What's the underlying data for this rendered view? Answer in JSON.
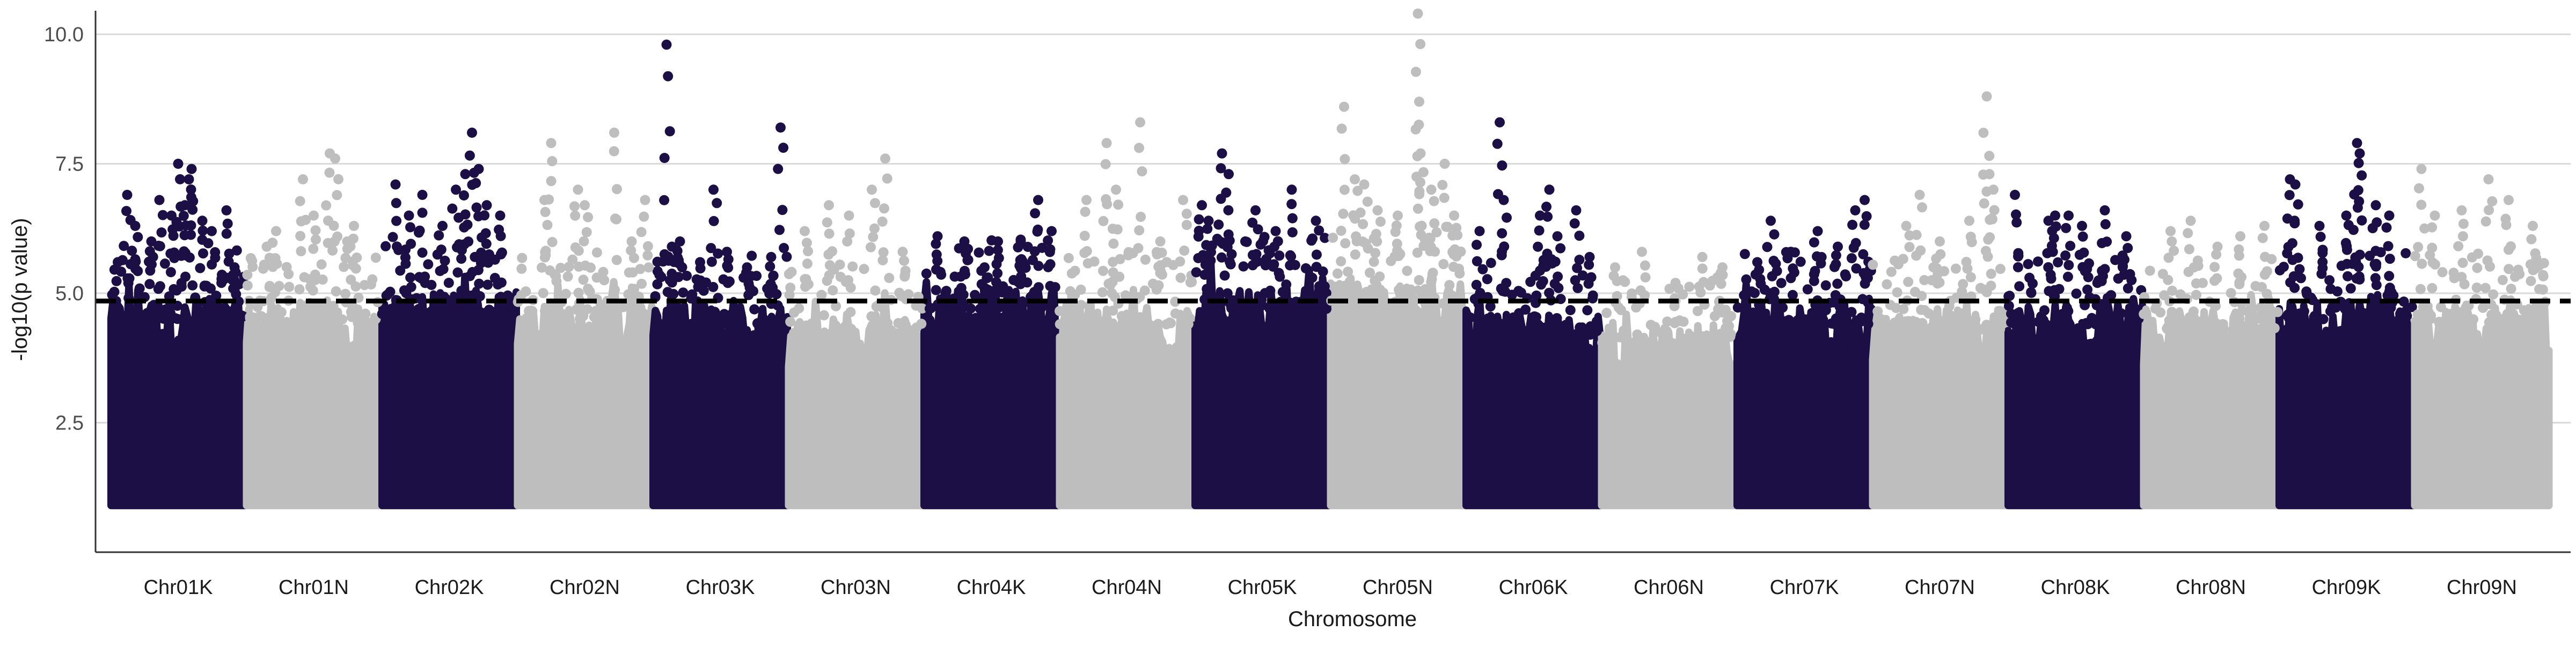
{
  "chart_data": {
    "type": "scatter",
    "subtype": "manhattan",
    "title": "",
    "xlabel": "Chromosome",
    "ylabel": "-log10(p value)",
    "ylim": [
      0,
      11
    ],
    "yticks": [
      2.5,
      5.0,
      7.5,
      10.0
    ],
    "ytick_labels": [
      "2.5",
      "5.0",
      "7.5",
      "10.0"
    ],
    "grid": "horizontal major lines",
    "legend": "none",
    "threshold": 4.85,
    "threshold_style": "dashed black",
    "colors": {
      "odd": "#1c0f45",
      "even": "#bebebe",
      "threshold": "#000000",
      "grid": "#d9d9d9",
      "axis": "#333333"
    },
    "categories": [
      "Chr01K",
      "Chr01N",
      "Chr02K",
      "Chr02N",
      "Chr03K",
      "Chr03N",
      "Chr04K",
      "Chr04N",
      "Chr05K",
      "Chr05N",
      "Chr06K",
      "Chr06N",
      "Chr07K",
      "Chr07N",
      "Chr08K",
      "Chr08N",
      "Chr09K",
      "Chr09N"
    ],
    "dense_ceiling": [
      4.7,
      4.6,
      4.8,
      4.7,
      4.6,
      4.4,
      4.9,
      4.6,
      4.9,
      5.0,
      4.4,
      4.2,
      4.6,
      4.5,
      4.6,
      4.5,
      4.7,
      4.6
    ],
    "peaks": [
      {
        "chr": "Chr01K",
        "pos": 0.05,
        "p": 5.6
      },
      {
        "chr": "Chr01K",
        "pos": 0.12,
        "p": 6.9
      },
      {
        "chr": "Chr01K",
        "pos": 0.18,
        "p": 6.3
      },
      {
        "chr": "Chr01K",
        "pos": 0.3,
        "p": 6.0
      },
      {
        "chr": "Chr01K",
        "pos": 0.36,
        "p": 6.8
      },
      {
        "chr": "Chr01K",
        "pos": 0.45,
        "p": 6.5
      },
      {
        "chr": "Chr01K",
        "pos": 0.5,
        "p": 7.5
      },
      {
        "chr": "Chr01K",
        "pos": 0.55,
        "p": 6.7
      },
      {
        "chr": "Chr01K",
        "pos": 0.58,
        "p": 7.2
      },
      {
        "chr": "Chr01K",
        "pos": 0.6,
        "p": 7.4
      },
      {
        "chr": "Chr01K",
        "pos": 0.68,
        "p": 6.4
      },
      {
        "chr": "Chr01K",
        "pos": 0.75,
        "p": 6.2
      },
      {
        "chr": "Chr01K",
        "pos": 0.86,
        "p": 6.6
      },
      {
        "chr": "Chr01K",
        "pos": 0.92,
        "p": 5.5
      },
      {
        "chr": "Chr01N",
        "pos": 0.15,
        "p": 5.9
      },
      {
        "chr": "Chr01N",
        "pos": 0.22,
        "p": 6.2
      },
      {
        "chr": "Chr01N",
        "pos": 0.42,
        "p": 7.2
      },
      {
        "chr": "Chr01N",
        "pos": 0.5,
        "p": 6.5
      },
      {
        "chr": "Chr01N",
        "pos": 0.62,
        "p": 7.7
      },
      {
        "chr": "Chr01N",
        "pos": 0.66,
        "p": 7.6
      },
      {
        "chr": "Chr01N",
        "pos": 0.75,
        "p": 6.0
      },
      {
        "chr": "Chr01N",
        "pos": 0.8,
        "p": 6.3
      },
      {
        "chr": "Chr02K",
        "pos": 0.1,
        "p": 7.1
      },
      {
        "chr": "Chr02K",
        "pos": 0.2,
        "p": 6.5
      },
      {
        "chr": "Chr02K",
        "pos": 0.3,
        "p": 6.9
      },
      {
        "chr": "Chr02K",
        "pos": 0.45,
        "p": 6.3
      },
      {
        "chr": "Chr02K",
        "pos": 0.55,
        "p": 7.0
      },
      {
        "chr": "Chr02K",
        "pos": 0.62,
        "p": 7.3
      },
      {
        "chr": "Chr02K",
        "pos": 0.67,
        "p": 8.1
      },
      {
        "chr": "Chr02K",
        "pos": 0.72,
        "p": 7.4
      },
      {
        "chr": "Chr02K",
        "pos": 0.78,
        "p": 6.7
      },
      {
        "chr": "Chr02K",
        "pos": 0.88,
        "p": 6.5
      },
      {
        "chr": "Chr02N",
        "pos": 0.2,
        "p": 6.8
      },
      {
        "chr": "Chr02N",
        "pos": 0.25,
        "p": 7.9
      },
      {
        "chr": "Chr02N",
        "pos": 0.45,
        "p": 7.0
      },
      {
        "chr": "Chr02N",
        "pos": 0.5,
        "p": 6.7
      },
      {
        "chr": "Chr02N",
        "pos": 0.72,
        "p": 8.1
      },
      {
        "chr": "Chr02N",
        "pos": 0.85,
        "p": 6.0
      },
      {
        "chr": "Chr02N",
        "pos": 0.95,
        "p": 6.8
      },
      {
        "chr": "Chr03K",
        "pos": 0.1,
        "p": 9.8
      },
      {
        "chr": "Chr03K",
        "pos": 0.14,
        "p": 5.9
      },
      {
        "chr": "Chr03K",
        "pos": 0.2,
        "p": 6.0
      },
      {
        "chr": "Chr03K",
        "pos": 0.35,
        "p": 5.6
      },
      {
        "chr": "Chr03K",
        "pos": 0.45,
        "p": 7.0
      },
      {
        "chr": "Chr03K",
        "pos": 0.55,
        "p": 5.8
      },
      {
        "chr": "Chr03K",
        "pos": 0.7,
        "p": 5.5
      },
      {
        "chr": "Chr03K",
        "pos": 0.88,
        "p": 5.7
      },
      {
        "chr": "Chr03K",
        "pos": 0.95,
        "p": 8.2
      },
      {
        "chr": "Chr03N",
        "pos": 0.12,
        "p": 6.2
      },
      {
        "chr": "Chr03N",
        "pos": 0.3,
        "p": 6.7
      },
      {
        "chr": "Chr03N",
        "pos": 0.45,
        "p": 6.5
      },
      {
        "chr": "Chr03N",
        "pos": 0.62,
        "p": 7.0
      },
      {
        "chr": "Chr03N",
        "pos": 0.72,
        "p": 7.6
      },
      {
        "chr": "Chr03N",
        "pos": 0.85,
        "p": 5.8
      },
      {
        "chr": "Chr04K",
        "pos": 0.1,
        "p": 6.1
      },
      {
        "chr": "Chr04K",
        "pos": 0.3,
        "p": 6.0
      },
      {
        "chr": "Chr04K",
        "pos": 0.45,
        "p": 5.5
      },
      {
        "chr": "Chr04K",
        "pos": 0.55,
        "p": 6.0
      },
      {
        "chr": "Chr04K",
        "pos": 0.72,
        "p": 6.0
      },
      {
        "chr": "Chr04K",
        "pos": 0.85,
        "p": 6.8
      },
      {
        "chr": "Chr04K",
        "pos": 0.95,
        "p": 6.2
      },
      {
        "chr": "Chr04N",
        "pos": 0.2,
        "p": 6.8
      },
      {
        "chr": "Chr04N",
        "pos": 0.35,
        "p": 7.9
      },
      {
        "chr": "Chr04N",
        "pos": 0.42,
        "p": 7.0
      },
      {
        "chr": "Chr04N",
        "pos": 0.6,
        "p": 8.3
      },
      {
        "chr": "Chr04N",
        "pos": 0.75,
        "p": 6.0
      },
      {
        "chr": "Chr04N",
        "pos": 0.92,
        "p": 6.8
      },
      {
        "chr": "Chr05K",
        "pos": 0.05,
        "p": 6.7
      },
      {
        "chr": "Chr05K",
        "pos": 0.1,
        "p": 6.4
      },
      {
        "chr": "Chr05K",
        "pos": 0.2,
        "p": 7.7
      },
      {
        "chr": "Chr05K",
        "pos": 0.25,
        "p": 7.3
      },
      {
        "chr": "Chr05K",
        "pos": 0.45,
        "p": 6.6
      },
      {
        "chr": "Chr05K",
        "pos": 0.6,
        "p": 6.2
      },
      {
        "chr": "Chr05K",
        "pos": 0.72,
        "p": 7.0
      },
      {
        "chr": "Chr05K",
        "pos": 0.9,
        "p": 6.4
      },
      {
        "chr": "Chr05N",
        "pos": 0.1,
        "p": 8.6
      },
      {
        "chr": "Chr05N",
        "pos": 0.18,
        "p": 7.2
      },
      {
        "chr": "Chr05N",
        "pos": 0.25,
        "p": 7.1
      },
      {
        "chr": "Chr05N",
        "pos": 0.35,
        "p": 6.6
      },
      {
        "chr": "Chr05N",
        "pos": 0.5,
        "p": 6.5
      },
      {
        "chr": "Chr05N",
        "pos": 0.65,
        "p": 10.4
      },
      {
        "chr": "Chr05N",
        "pos": 0.66,
        "p": 8.7
      },
      {
        "chr": "Chr05N",
        "pos": 0.67,
        "p": 7.7
      },
      {
        "chr": "Chr05N",
        "pos": 0.75,
        "p": 7.0
      },
      {
        "chr": "Chr05N",
        "pos": 0.85,
        "p": 7.5
      },
      {
        "chr": "Chr05N",
        "pos": 0.92,
        "p": 6.5
      },
      {
        "chr": "Chr06K",
        "pos": 0.1,
        "p": 6.2
      },
      {
        "chr": "Chr06K",
        "pos": 0.25,
        "p": 8.3
      },
      {
        "chr": "Chr06K",
        "pos": 0.28,
        "p": 6.8
      },
      {
        "chr": "Chr06K",
        "pos": 0.55,
        "p": 6.5
      },
      {
        "chr": "Chr06K",
        "pos": 0.62,
        "p": 7.0
      },
      {
        "chr": "Chr06K",
        "pos": 0.68,
        "p": 6.1
      },
      {
        "chr": "Chr06K",
        "pos": 0.82,
        "p": 6.6
      },
      {
        "chr": "Chr06K",
        "pos": 0.92,
        "p": 5.7
      },
      {
        "chr": "Chr06N",
        "pos": 0.1,
        "p": 5.5
      },
      {
        "chr": "Chr06N",
        "pos": 0.3,
        "p": 5.8
      },
      {
        "chr": "Chr06N",
        "pos": 0.55,
        "p": 5.2
      },
      {
        "chr": "Chr06N",
        "pos": 0.75,
        "p": 5.7
      },
      {
        "chr": "Chr06N",
        "pos": 0.9,
        "p": 5.5
      },
      {
        "chr": "Chr07K",
        "pos": 0.15,
        "p": 5.6
      },
      {
        "chr": "Chr07K",
        "pos": 0.25,
        "p": 6.4
      },
      {
        "chr": "Chr07K",
        "pos": 0.4,
        "p": 5.8
      },
      {
        "chr": "Chr07K",
        "pos": 0.6,
        "p": 6.2
      },
      {
        "chr": "Chr07K",
        "pos": 0.75,
        "p": 5.9
      },
      {
        "chr": "Chr07K",
        "pos": 0.88,
        "p": 6.6
      },
      {
        "chr": "Chr07K",
        "pos": 0.95,
        "p": 6.8
      },
      {
        "chr": "Chr07N",
        "pos": 0.25,
        "p": 6.3
      },
      {
        "chr": "Chr07N",
        "pos": 0.35,
        "p": 6.9
      },
      {
        "chr": "Chr07N",
        "pos": 0.5,
        "p": 6.0
      },
      {
        "chr": "Chr07N",
        "pos": 0.72,
        "p": 6.4
      },
      {
        "chr": "Chr07N",
        "pos": 0.85,
        "p": 8.8
      },
      {
        "chr": "Chr07N",
        "pos": 0.87,
        "p": 7.3
      },
      {
        "chr": "Chr07N",
        "pos": 0.9,
        "p": 7.0
      },
      {
        "chr": "Chr08K",
        "pos": 0.05,
        "p": 6.9
      },
      {
        "chr": "Chr08K",
        "pos": 0.3,
        "p": 6.4
      },
      {
        "chr": "Chr08K",
        "pos": 0.35,
        "p": 6.5
      },
      {
        "chr": "Chr08K",
        "pos": 0.45,
        "p": 6.5
      },
      {
        "chr": "Chr08K",
        "pos": 0.55,
        "p": 6.3
      },
      {
        "chr": "Chr08K",
        "pos": 0.72,
        "p": 6.6
      },
      {
        "chr": "Chr08K",
        "pos": 0.88,
        "p": 6.1
      },
      {
        "chr": "Chr08N",
        "pos": 0.2,
        "p": 6.2
      },
      {
        "chr": "Chr08N",
        "pos": 0.35,
        "p": 6.4
      },
      {
        "chr": "Chr08N",
        "pos": 0.55,
        "p": 5.9
      },
      {
        "chr": "Chr08N",
        "pos": 0.72,
        "p": 6.1
      },
      {
        "chr": "Chr08N",
        "pos": 0.9,
        "p": 6.3
      },
      {
        "chr": "Chr09K",
        "pos": 0.08,
        "p": 7.2
      },
      {
        "chr": "Chr09K",
        "pos": 0.12,
        "p": 7.1
      },
      {
        "chr": "Chr09K",
        "pos": 0.3,
        "p": 6.3
      },
      {
        "chr": "Chr09K",
        "pos": 0.5,
        "p": 6.5
      },
      {
        "chr": "Chr09K",
        "pos": 0.58,
        "p": 7.9
      },
      {
        "chr": "Chr09K",
        "pos": 0.6,
        "p": 7.7
      },
      {
        "chr": "Chr09K",
        "pos": 0.72,
        "p": 6.7
      },
      {
        "chr": "Chr09K",
        "pos": 0.82,
        "p": 6.5
      },
      {
        "chr": "Chr09N",
        "pos": 0.05,
        "p": 7.4
      },
      {
        "chr": "Chr09N",
        "pos": 0.15,
        "p": 6.5
      },
      {
        "chr": "Chr09N",
        "pos": 0.35,
        "p": 6.6
      },
      {
        "chr": "Chr09N",
        "pos": 0.55,
        "p": 7.2
      },
      {
        "chr": "Chr09N",
        "pos": 0.7,
        "p": 6.8
      },
      {
        "chr": "Chr09N",
        "pos": 0.88,
        "p": 6.3
      }
    ]
  }
}
